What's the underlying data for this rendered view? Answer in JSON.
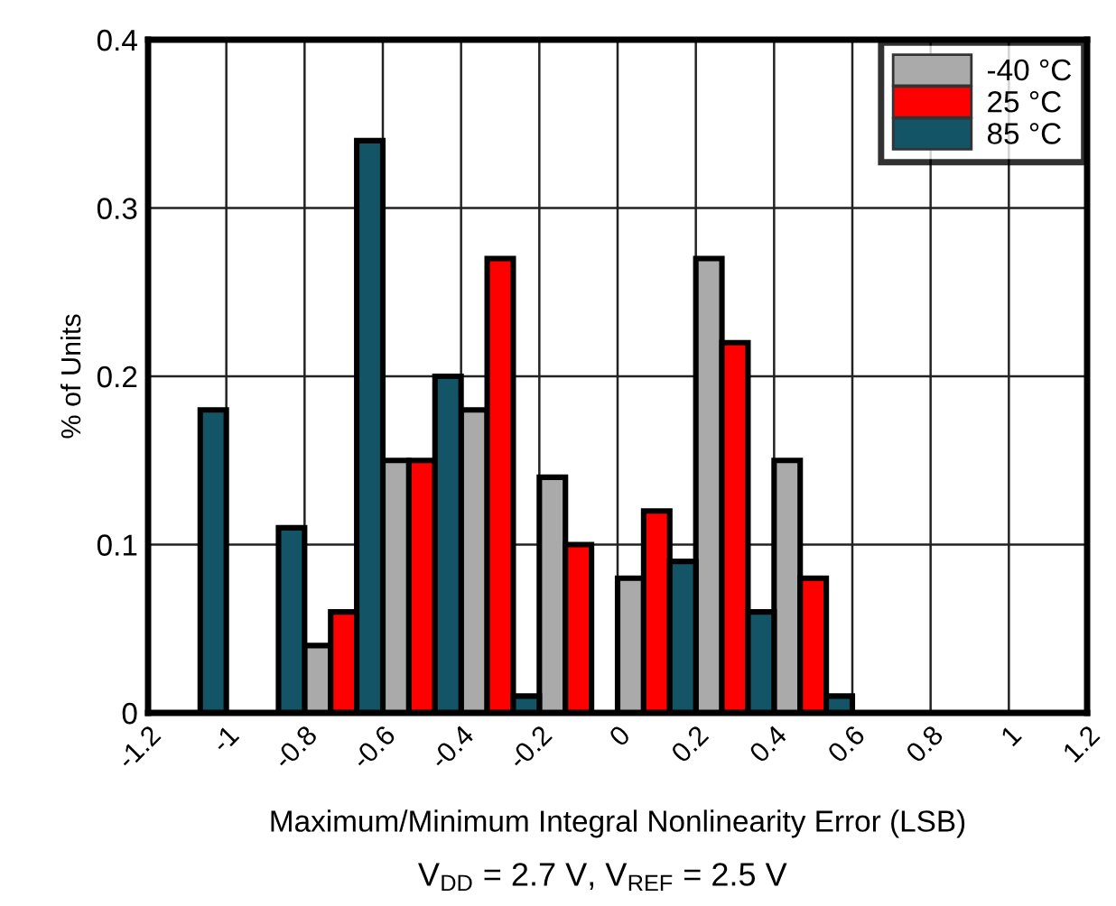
{
  "chart_data": {
    "type": "bar",
    "xlabel": "Maximum/Minimum Integral Nonlinearity Error (LSB)",
    "ylabel": "% of Units",
    "annotations": [
      "V$_{DD}$ = 2.7 V, V$_{REF}$ = 2.5 V"
    ],
    "x": [
      -1.1,
      -0.9,
      -0.7,
      -0.5,
      -0.3,
      -0.1,
      0.1,
      0.3,
      0.5
    ],
    "series": [
      {
        "name": "-40 °C",
        "color": "#aaaaaa",
        "values": [
          null,
          null,
          0.04,
          0.15,
          0.18,
          0.14,
          0.08,
          0.27,
          0.15
        ]
      },
      {
        "name": "25 °C",
        "color": "#ff0000",
        "values": [
          null,
          null,
          0.06,
          0.15,
          0.27,
          0.1,
          0.12,
          0.22,
          0.08
        ]
      },
      {
        "name": "85 °C",
        "color": "#135566",
        "values": [
          0.18,
          0.11,
          0.34,
          0.2,
          0.01,
          null,
          0.09,
          0.06,
          0.01
        ]
      }
    ],
    "xlim": [
      -1.2,
      1.2
    ],
    "xticks": [
      -1.2,
      -1,
      -0.8,
      -0.6,
      -0.4,
      -0.2,
      0,
      0.2,
      0.4,
      0.6,
      0.8,
      1,
      1.2
    ],
    "ylim": [
      0,
      0.4
    ],
    "yticks": [
      0,
      0.1,
      0.2,
      0.3,
      0.4
    ],
    "grid": true,
    "legend": "top right"
  }
}
